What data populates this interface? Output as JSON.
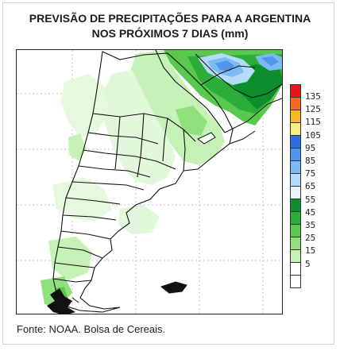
{
  "title_line1": "PREVISÃO DE PRECIPITAÇÕES PARA A ARGENTINA",
  "title_line2": "NOS PRÓXIMOS 7 DIAS (mm)",
  "source": "Fonte: NOAA. Bolsa de Cereais.",
  "legend": {
    "colors": [
      "#e8141b",
      "#f46c21",
      "#f8b82a",
      "#f7ee8a",
      "#2c6ee0",
      "#4f95ec",
      "#7dbaf4",
      "#b4dbfa",
      "#e8f4fd",
      "#0d8d2c",
      "#2cad3a",
      "#58c84e",
      "#8fe07c",
      "#c6f2b8",
      "#ffffff",
      "#ffffff"
    ],
    "ticks": [
      "135",
      "125",
      "115",
      "105",
      "95",
      "85",
      "75",
      "65",
      "55",
      "45",
      "35",
      "25",
      "15",
      "5"
    ]
  }
}
